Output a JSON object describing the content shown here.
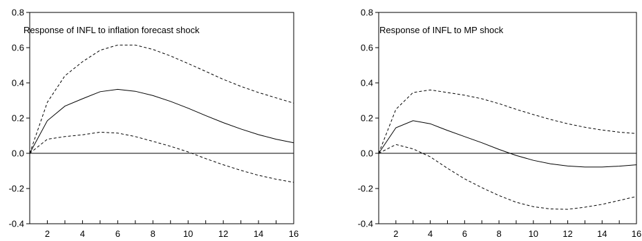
{
  "chart_data": [
    {
      "type": "line",
      "title": "Response of INFL to inflation forecast shock",
      "xlim": [
        1,
        16
      ],
      "ylim": [
        -0.4,
        0.8
      ],
      "xticks": [
        2,
        4,
        6,
        8,
        10,
        12,
        14,
        16
      ],
      "xtick_labels": [
        "2",
        "4",
        "6",
        "8",
        "10",
        "12",
        "14",
        "16"
      ],
      "yticks": [
        -0.4,
        -0.2,
        0.0,
        0.2,
        0.4,
        0.6,
        0.8
      ],
      "ytick_labels": [
        "-0.4",
        "-0.2",
        "0.0",
        "0.2",
        "0.4",
        "0.6",
        "0.8"
      ],
      "zero_line": true,
      "x": [
        1,
        2,
        3,
        4,
        5,
        6,
        7,
        8,
        9,
        10,
        11,
        12,
        13,
        14,
        15,
        16
      ],
      "series": [
        {
          "style": "solid",
          "values": [
            0.0,
            0.185,
            0.268,
            0.31,
            0.35,
            0.363,
            0.352,
            0.328,
            0.295,
            0.256,
            0.214,
            0.174,
            0.138,
            0.106,
            0.08,
            0.06
          ]
        },
        {
          "style": "dashed",
          "values": [
            0.0,
            0.29,
            0.44,
            0.52,
            0.585,
            0.615,
            0.615,
            0.59,
            0.553,
            0.51,
            0.465,
            0.42,
            0.38,
            0.345,
            0.315,
            0.285
          ]
        },
        {
          "style": "dashed",
          "values": [
            0.0,
            0.08,
            0.095,
            0.105,
            0.12,
            0.115,
            0.095,
            0.068,
            0.04,
            0.008,
            -0.03,
            -0.065,
            -0.097,
            -0.125,
            -0.147,
            -0.165
          ]
        }
      ]
    },
    {
      "type": "line",
      "title": "Response of INFL to MP shock",
      "xlim": [
        1,
        16
      ],
      "ylim": [
        -0.4,
        0.8
      ],
      "xticks": [
        2,
        4,
        6,
        8,
        10,
        12,
        14,
        16
      ],
      "xtick_labels": [
        "2",
        "4",
        "6",
        "8",
        "10",
        "12",
        "14",
        "16"
      ],
      "yticks": [
        -0.4,
        -0.2,
        0.0,
        0.2,
        0.4,
        0.6,
        0.8
      ],
      "ytick_labels": [
        "-0.4",
        "-0.2",
        "0.0",
        "0.2",
        "0.4",
        "0.6",
        "0.8"
      ],
      "zero_line": true,
      "x": [
        1,
        2,
        3,
        4,
        5,
        6,
        7,
        8,
        9,
        10,
        11,
        12,
        13,
        14,
        15,
        16
      ],
      "series": [
        {
          "style": "solid",
          "values": [
            0.0,
            0.145,
            0.185,
            0.168,
            0.13,
            0.095,
            0.06,
            0.022,
            -0.012,
            -0.04,
            -0.06,
            -0.072,
            -0.078,
            -0.078,
            -0.073,
            -0.065
          ]
        },
        {
          "style": "dashed",
          "values": [
            0.0,
            0.25,
            0.345,
            0.36,
            0.345,
            0.33,
            0.31,
            0.282,
            0.25,
            0.22,
            0.192,
            0.168,
            0.148,
            0.132,
            0.12,
            0.112
          ]
        },
        {
          "style": "dashed",
          "values": [
            0.0,
            0.05,
            0.025,
            -0.02,
            -0.085,
            -0.145,
            -0.195,
            -0.24,
            -0.278,
            -0.303,
            -0.316,
            -0.318,
            -0.306,
            -0.29,
            -0.268,
            -0.245
          ]
        }
      ]
    }
  ]
}
